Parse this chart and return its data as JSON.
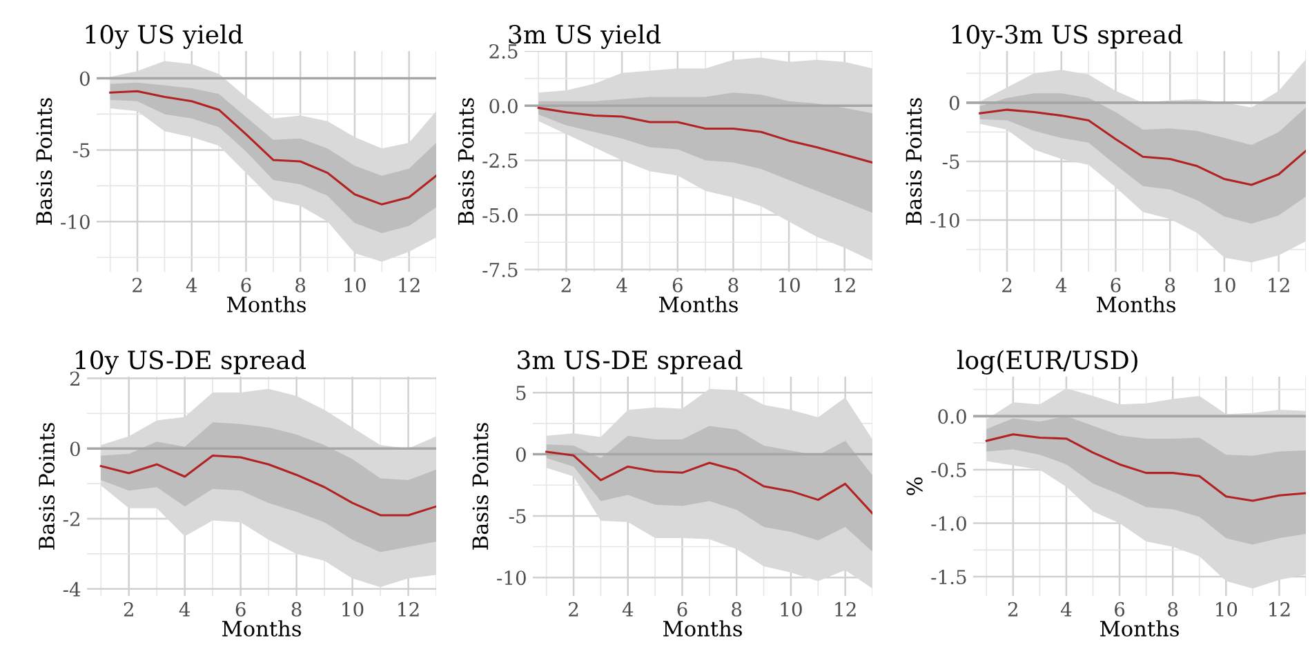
{
  "chart_data": [
    {
      "type": "line",
      "title": "10y US yield",
      "xlabel": "Months",
      "ylabel": "Basis Points",
      "x": [
        1,
        2,
        3,
        4,
        5,
        6,
        7,
        8,
        9,
        10,
        11,
        12,
        13
      ],
      "xlim": [
        0.5,
        13
      ],
      "xticks": [
        {
          "value": 1,
          "label": null
        },
        2,
        {
          "value": 3,
          "label": null
        },
        4,
        {
          "value": 5,
          "label": null
        },
        6,
        {
          "value": 7,
          "label": null
        },
        8,
        {
          "value": 9,
          "label": null
        },
        10,
        {
          "value": 11,
          "label": null
        },
        12,
        {
          "value": 13,
          "label": null
        }
      ],
      "ylim": [
        -13.5,
        1.9
      ],
      "yticks": [
        {
          "value": -12.5,
          "label": null
        },
        -10,
        {
          "value": -7.5,
          "label": null
        },
        -5,
        {
          "value": -2.5,
          "label": null
        },
        0
      ],
      "grid": true,
      "ref_lines": [
        {
          "axis": "y",
          "value": 0,
          "color": "#a6a6a6"
        }
      ],
      "series": [
        {
          "color": "#d9d9d9",
          "values": [
            null,
            null,
            null,
            null,
            null,
            null,
            null,
            null,
            null,
            null,
            null,
            null,
            null
          ],
          "upper": [
            0.1,
            0.5,
            1.2,
            1.0,
            0.3,
            -1.3,
            -2.8,
            -2.6,
            -3.0,
            -4.1,
            -4.9,
            -4.5,
            -2.3
          ],
          "lower": [
            -2.1,
            -2.3,
            -3.7,
            -4.1,
            -4.7,
            -6.6,
            -8.5,
            -8.9,
            -10.0,
            -12.2,
            -12.8,
            -12.1,
            -11.1
          ]
        },
        {
          "color": "#bdbdbd",
          "values": [
            null,
            null,
            null,
            null,
            null,
            null,
            null,
            null,
            null,
            null,
            null,
            null,
            null
          ],
          "upper": [
            -0.4,
            -0.3,
            -0.5,
            -0.7,
            -1.1,
            -2.7,
            -4.3,
            -4.2,
            -4.9,
            -6.1,
            -6.8,
            -6.3,
            -4.5
          ],
          "lower": [
            -1.5,
            -1.6,
            -2.5,
            -2.8,
            -3.4,
            -5.1,
            -7.1,
            -7.4,
            -8.2,
            -10.1,
            -10.8,
            -10.3,
            -9.0
          ]
        },
        {
          "color": "#b22222",
          "values": [
            -1.0,
            -0.9,
            -1.3,
            -1.6,
            -2.2,
            -3.9,
            -5.7,
            -5.8,
            -6.6,
            -8.1,
            -8.8,
            -8.3,
            -6.8
          ]
        }
      ]
    },
    {
      "type": "line",
      "title": "3m US yield",
      "xlabel": "Months",
      "ylabel": "Basis Points",
      "x": [
        1,
        2,
        3,
        4,
        5,
        6,
        7,
        8,
        9,
        10,
        11,
        12,
        13
      ],
      "xlim": [
        0.5,
        13
      ],
      "xticks": [
        {
          "value": 1,
          "label": null
        },
        2,
        {
          "value": 3,
          "label": null
        },
        4,
        {
          "value": 5,
          "label": null
        },
        6,
        {
          "value": 7,
          "label": null
        },
        8,
        {
          "value": 9,
          "label": null
        },
        10,
        {
          "value": 11,
          "label": null
        },
        12,
        {
          "value": 13,
          "label": null
        }
      ],
      "ylim": [
        -7.6,
        2.5
      ],
      "yticks": [
        {
          "value": -7.5,
          "label": "-7.5"
        },
        {
          "value": -6.25,
          "label": null
        },
        {
          "value": -5,
          "label": "-5.0"
        },
        {
          "value": -3.75,
          "label": null
        },
        {
          "value": -2.5,
          "label": "-2.5"
        },
        {
          "value": -1.25,
          "label": null
        },
        {
          "value": 0,
          "label": "0.0"
        },
        {
          "value": 1.25,
          "label": null
        },
        {
          "value": 2.5,
          "label": "2.5"
        }
      ],
      "grid": true,
      "ref_lines": [
        {
          "axis": "y",
          "value": 0,
          "color": "#a6a6a6"
        }
      ],
      "series": [
        {
          "color": "#d9d9d9",
          "values": [
            null,
            null,
            null,
            null,
            null,
            null,
            null,
            null,
            null,
            null,
            null,
            null,
            null
          ],
          "upper": [
            0.6,
            0.7,
            1.0,
            1.5,
            1.6,
            1.7,
            1.7,
            2.1,
            2.2,
            2.0,
            2.1,
            2.0,
            1.7
          ],
          "lower": [
            -0.7,
            -1.3,
            -1.9,
            -2.5,
            -3.0,
            -3.2,
            -3.9,
            -4.2,
            -4.6,
            -5.3,
            -6.0,
            -6.5,
            -7.1
          ]
        },
        {
          "color": "#bdbdbd",
          "values": [
            null,
            null,
            null,
            null,
            null,
            null,
            null,
            null,
            null,
            null,
            null,
            null,
            null
          ],
          "upper": [
            0.2,
            0.2,
            0.2,
            0.3,
            0.4,
            0.4,
            0.4,
            0.6,
            0.5,
            0.2,
            0.1,
            -0.1,
            -0.35
          ],
          "lower": [
            -0.4,
            -0.9,
            -1.2,
            -1.5,
            -1.9,
            -2.0,
            -2.5,
            -2.6,
            -2.9,
            -3.4,
            -3.9,
            -4.4,
            -4.9
          ]
        },
        {
          "color": "#b22222",
          "values": [
            -0.1,
            -0.3,
            -0.45,
            -0.5,
            -0.75,
            -0.75,
            -1.05,
            -1.05,
            -1.2,
            -1.6,
            -1.9,
            -2.25,
            -2.6
          ]
        }
      ]
    },
    {
      "type": "line",
      "title": "10y-3m US spread",
      "xlabel": "Months",
      "ylabel": "Basis Points",
      "x": [
        1,
        2,
        3,
        4,
        5,
        6,
        7,
        8,
        9,
        10,
        11,
        12,
        13
      ],
      "xlim": [
        0.5,
        13
      ],
      "xticks": [
        {
          "value": 1,
          "label": null
        },
        2,
        {
          "value": 3,
          "label": null
        },
        4,
        {
          "value": 5,
          "label": null
        },
        6,
        {
          "value": 7,
          "label": null
        },
        8,
        {
          "value": 9,
          "label": null
        },
        10,
        {
          "value": 11,
          "label": null
        },
        12,
        {
          "value": 13,
          "label": null
        }
      ],
      "ylim": [
        -14.4,
        4.4
      ],
      "yticks": [
        {
          "value": -12.5,
          "label": null
        },
        -10,
        {
          "value": -7.5,
          "label": null
        },
        -5,
        {
          "value": -2.5,
          "label": null
        },
        0,
        {
          "value": 2.5,
          "label": null
        }
      ],
      "grid": true,
      "ref_lines": [
        {
          "axis": "y",
          "value": 0,
          "color": "#a6a6a6"
        }
      ],
      "series": [
        {
          "color": "#d9d9d9",
          "values": [
            null,
            null,
            null,
            null,
            null,
            null,
            null,
            null,
            null,
            null,
            null,
            null,
            null
          ],
          "upper": [
            0.1,
            1.3,
            2.5,
            2.8,
            2.4,
            1.0,
            0.0,
            0.2,
            0.3,
            0.0,
            -0.4,
            1.0,
            3.7
          ],
          "lower": [
            -1.8,
            -2.3,
            -4.0,
            -4.8,
            -5.3,
            -7.2,
            -9.3,
            -9.9,
            -11.1,
            -13.2,
            -13.6,
            -13.0,
            -11.8
          ]
        },
        {
          "color": "#bdbdbd",
          "values": [
            null,
            null,
            null,
            null,
            null,
            null,
            null,
            null,
            null,
            null,
            null,
            null,
            null
          ],
          "upper": [
            -0.3,
            0.4,
            0.8,
            0.8,
            0.4,
            -0.8,
            -2.3,
            -2.2,
            -2.4,
            -3.0,
            -3.6,
            -2.5,
            -0.4
          ],
          "lower": [
            -1.4,
            -1.5,
            -2.4,
            -3.0,
            -3.4,
            -5.3,
            -7.1,
            -7.4,
            -8.3,
            -9.7,
            -10.3,
            -9.6,
            -8.0
          ]
        },
        {
          "color": "#b22222",
          "values": [
            -0.9,
            -0.6,
            -0.8,
            -1.1,
            -1.5,
            -3.1,
            -4.6,
            -4.8,
            -5.4,
            -6.5,
            -7.0,
            -6.1,
            -4.1
          ]
        }
      ]
    },
    {
      "type": "line",
      "title": "10y US-DE spread",
      "xlabel": "Months",
      "ylabel": "Basis Points",
      "x": [
        1,
        2,
        3,
        4,
        5,
        6,
        7,
        8,
        9,
        10,
        11,
        12,
        13
      ],
      "xlim": [
        0.5,
        13
      ],
      "xticks": [
        {
          "value": 1,
          "label": null
        },
        2,
        {
          "value": 3,
          "label": null
        },
        4,
        {
          "value": 5,
          "label": null
        },
        6,
        {
          "value": 7,
          "label": null
        },
        8,
        {
          "value": 9,
          "label": null
        },
        10,
        {
          "value": 11,
          "label": null
        },
        12,
        {
          "value": 13,
          "label": null
        }
      ],
      "ylim": [
        -4.2,
        2.05
      ],
      "yticks": [
        -4,
        {
          "value": -3,
          "label": null
        },
        -2,
        {
          "value": -1,
          "label": null
        },
        0,
        {
          "value": 1,
          "label": null
        },
        2
      ],
      "grid": true,
      "ref_lines": [
        {
          "axis": "y",
          "value": 0,
          "color": "#a6a6a6"
        }
      ],
      "series": [
        {
          "color": "#d9d9d9",
          "values": [
            null,
            null,
            null,
            null,
            null,
            null,
            null,
            null,
            null,
            null,
            null,
            null,
            null
          ],
          "upper": [
            0.1,
            0.35,
            0.8,
            0.9,
            1.6,
            1.6,
            1.7,
            1.5,
            1.1,
            0.6,
            0.1,
            0.0,
            0.35
          ],
          "lower": [
            -1.05,
            -1.7,
            -1.7,
            -2.5,
            -2.05,
            -2.1,
            -2.6,
            -3.0,
            -3.2,
            -3.7,
            -3.95,
            -3.7,
            -3.6
          ]
        },
        {
          "color": "#bdbdbd",
          "values": [
            null,
            null,
            null,
            null,
            null,
            null,
            null,
            null,
            null,
            null,
            null,
            null,
            null
          ],
          "upper": [
            -0.2,
            -0.15,
            0.2,
            0.05,
            0.75,
            0.7,
            0.6,
            0.4,
            0.1,
            -0.3,
            -0.85,
            -0.9,
            -0.6
          ],
          "lower": [
            -0.9,
            -1.2,
            -1.1,
            -1.65,
            -1.15,
            -1.2,
            -1.55,
            -1.8,
            -2.1,
            -2.6,
            -2.95,
            -2.8,
            -2.65
          ]
        },
        {
          "color": "#b22222",
          "values": [
            -0.5,
            -0.7,
            -0.45,
            -0.8,
            -0.2,
            -0.25,
            -0.45,
            -0.75,
            -1.1,
            -1.55,
            -1.9,
            -1.9,
            -1.65
          ]
        }
      ]
    },
    {
      "type": "line",
      "title": "3m US-DE spread",
      "xlabel": "Months",
      "ylabel": "Basis Points",
      "x": [
        1,
        2,
        3,
        4,
        5,
        6,
        7,
        8,
        9,
        10,
        11,
        12,
        13
      ],
      "xlim": [
        0.5,
        13
      ],
      "xticks": [
        {
          "value": 1,
          "label": null
        },
        2,
        {
          "value": 3,
          "label": null
        },
        4,
        {
          "value": 5,
          "label": null
        },
        6,
        {
          "value": 7,
          "label": null
        },
        8,
        {
          "value": 9,
          "label": null
        },
        10,
        {
          "value": 11,
          "label": null
        },
        12,
        {
          "value": 13,
          "label": null
        }
      ],
      "ylim": [
        -11.5,
        6.3
      ],
      "yticks": [
        -10,
        {
          "value": -7.5,
          "label": null
        },
        -5,
        {
          "value": -2.5,
          "label": null
        },
        0,
        {
          "value": 2.5,
          "label": null
        },
        5
      ],
      "grid": true,
      "ref_lines": [
        {
          "axis": "y",
          "value": 0,
          "color": "#a6a6a6"
        }
      ],
      "series": [
        {
          "color": "#d9d9d9",
          "values": [
            null,
            null,
            null,
            null,
            null,
            null,
            null,
            null,
            null,
            null,
            null,
            null,
            null
          ],
          "upper": [
            1.5,
            1.7,
            1.4,
            3.6,
            3.8,
            3.7,
            5.3,
            5.2,
            4.0,
            3.6,
            3.0,
            4.6,
            1.2
          ],
          "lower": [
            -1.1,
            -1.8,
            -5.4,
            -5.5,
            -6.8,
            -6.8,
            -6.9,
            -7.7,
            -9.1,
            -9.6,
            -10.3,
            -9.4,
            -10.9
          ]
        },
        {
          "color": "#bdbdbd",
          "values": [
            null,
            null,
            null,
            null,
            null,
            null,
            null,
            null,
            null,
            null,
            null,
            null,
            null
          ],
          "upper": [
            0.8,
            0.7,
            -0.3,
            1.5,
            1.2,
            1.2,
            2.3,
            2.0,
            0.7,
            0.3,
            -0.1,
            1.1,
            -1.7
          ],
          "lower": [
            -0.3,
            -1.0,
            -3.8,
            -3.3,
            -4.1,
            -4.2,
            -3.8,
            -4.5,
            -5.9,
            -6.3,
            -7.0,
            -5.9,
            -7.9
          ]
        },
        {
          "color": "#b22222",
          "values": [
            0.2,
            -0.1,
            -2.1,
            -1.0,
            -1.4,
            -1.5,
            -0.7,
            -1.3,
            -2.6,
            -3.0,
            -3.7,
            -2.4,
            -4.8
          ]
        }
      ]
    },
    {
      "type": "line",
      "title": "log(EUR/USD)",
      "xlabel": "Months",
      "ylabel": "%",
      "x": [
        1,
        2,
        3,
        4,
        5,
        6,
        7,
        8,
        9,
        10,
        11,
        12,
        13
      ],
      "xlim": [
        0.5,
        13
      ],
      "xticks": [
        {
          "value": 1,
          "label": null
        },
        2,
        {
          "value": 3,
          "label": null
        },
        4,
        {
          "value": 5,
          "label": null
        },
        6,
        {
          "value": 7,
          "label": null
        },
        8,
        {
          "value": 9,
          "label": null
        },
        10,
        {
          "value": 11,
          "label": null
        },
        12,
        {
          "value": 13,
          "label": null
        }
      ],
      "ylim": [
        -1.68,
        0.37
      ],
      "yticks": [
        {
          "value": -1.5,
          "label": "-1.5"
        },
        {
          "value": -1.25,
          "label": null
        },
        {
          "value": -1,
          "label": "-1.0"
        },
        {
          "value": -0.75,
          "label": null
        },
        {
          "value": -0.5,
          "label": "-0.5"
        },
        {
          "value": -0.25,
          "label": null
        },
        {
          "value": 0,
          "label": "0.0"
        },
        {
          "value": 0.25,
          "label": null
        }
      ],
      "grid": true,
      "ref_lines": [
        {
          "axis": "y",
          "value": 0,
          "color": "#a6a6a6"
        }
      ],
      "series": [
        {
          "color": "#d9d9d9",
          "values": [
            null,
            null,
            null,
            null,
            null,
            null,
            null,
            null,
            null,
            null,
            null,
            null,
            null
          ],
          "upper": [
            -0.03,
            0.13,
            0.11,
            0.26,
            0.19,
            0.11,
            0.12,
            0.16,
            0.19,
            0.02,
            0.03,
            0.06,
            0.05
          ],
          "lower": [
            -0.42,
            -0.46,
            -0.5,
            -0.66,
            -0.89,
            -1.0,
            -1.17,
            -1.22,
            -1.31,
            -1.54,
            -1.61,
            -1.53,
            -1.48
          ]
        },
        {
          "color": "#bdbdbd",
          "values": [
            null,
            null,
            null,
            null,
            null,
            null,
            null,
            null,
            null,
            null,
            null,
            null,
            null
          ],
          "upper": [
            -0.12,
            -0.02,
            -0.05,
            0.0,
            -0.09,
            -0.18,
            -0.21,
            -0.21,
            -0.2,
            -0.36,
            -0.37,
            -0.33,
            -0.32
          ],
          "lower": [
            -0.33,
            -0.31,
            -0.36,
            -0.45,
            -0.63,
            -0.73,
            -0.85,
            -0.87,
            -0.94,
            -1.14,
            -1.2,
            -1.14,
            -1.1
          ]
        },
        {
          "color": "#b22222",
          "values": [
            -0.23,
            -0.17,
            -0.2,
            -0.21,
            -0.34,
            -0.45,
            -0.53,
            -0.53,
            -0.56,
            -0.75,
            -0.79,
            -0.74,
            -0.72
          ]
        }
      ]
    }
  ]
}
